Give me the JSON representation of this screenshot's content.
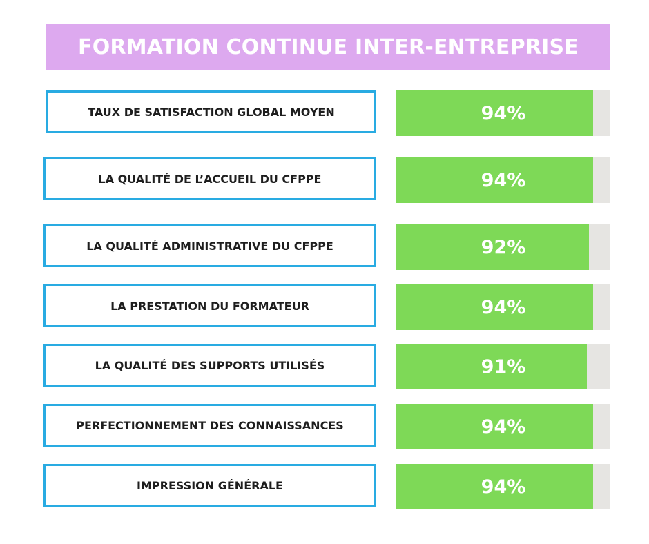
{
  "title": "FORMATION CONTINUE INTER-ENTREPRISE",
  "colors": {
    "banner": "#dda9ef",
    "label_border": "#29abe2",
    "bar_fill": "#7ed957",
    "bar_track": "#e6e5e2",
    "value_text": "#ffffff"
  },
  "chart_data": {
    "type": "bar",
    "orientation": "horizontal",
    "title": "FORMATION CONTINUE INTER-ENTREPRISE",
    "xlim": [
      0,
      100
    ],
    "categories": [
      "TAUX DE SATISFACTION GLOBAL MOYEN",
      "LA QUALITÉ DE L’ACCUEIL DU CFPPE",
      "LA QUALITÉ ADMINISTRATIVE DU CFPPE",
      "LA PRESTATION DU FORMATEUR",
      "LA QUALITÉ DES SUPPORTS UTILISÉS",
      "PERFECTIONNEMENT DES CONNAISSANCES",
      "IMPRESSION GÉNÉRALE"
    ],
    "values": [
      94,
      94,
      92,
      94,
      91,
      94,
      94
    ],
    "value_labels": [
      "94%",
      "94%",
      "92%",
      "94%",
      "91%",
      "94%",
      "94%"
    ]
  }
}
